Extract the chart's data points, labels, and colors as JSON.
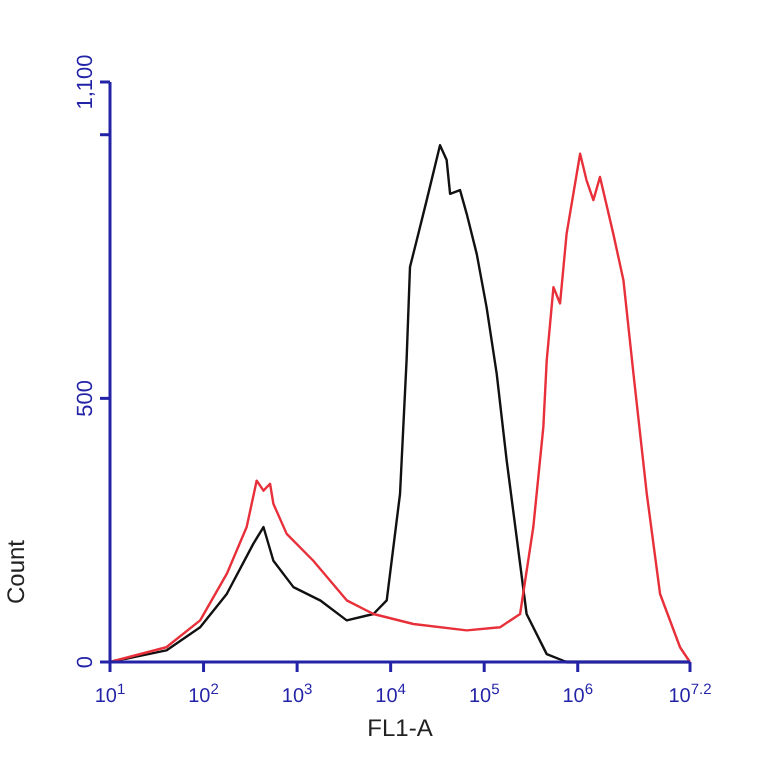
{
  "chart_data": {
    "type": "line",
    "xlabel": "FL1-A",
    "ylabel": "Count",
    "log": "x",
    "xlim": [
      10,
      15848932
    ],
    "xticks": [
      {
        "value": 10,
        "label": "10$^{1}$"
      },
      {
        "value": 100,
        "label": "10$^{2}$"
      },
      {
        "value": 1000,
        "label": "10$^{3}$"
      },
      {
        "value": 10000,
        "label": "10$^{4}$"
      },
      {
        "value": 100000,
        "label": "10$^{5}$"
      },
      {
        "value": 1000000,
        "label": "10$^{6}$"
      },
      {
        "value": 15848932,
        "label": "10$^{7.2}$"
      }
    ],
    "ylim": [
      0,
      1100
    ],
    "yticks": [
      0,
      500,
      {
        "value": 1000,
        "label": null
      },
      {
        "value": 1100,
        "label": "1,100"
      }
    ],
    "grid": false,
    "marker": "none",
    "line_style": "solid",
    "series": [
      {
        "color": "#111111",
        "x": [
          10,
          40,
          92,
          177,
          340,
          437,
          558,
          914,
          1760,
          3390,
          6550,
          9080,
          12600,
          14800,
          16100,
          19000,
          24300,
          33700,
          39700,
          43200,
          55200,
          65000,
          83200,
          106000,
          136000,
          174000,
          284000,
          466000,
          760000,
          15800000
        ],
        "values": [
          0,
          22,
          66,
          129,
          224,
          256,
          192,
          142,
          117,
          79,
          91,
          117,
          319,
          572,
          749,
          800,
          876,
          980,
          952,
          888,
          895,
          850,
          774,
          673,
          547,
          382,
          91,
          15,
          0,
          0
        ]
      },
      {
        "color": "#e8303a",
        "x": [
          10,
          40,
          92,
          177,
          289,
          370,
          437,
          514,
          558,
          774,
          1490,
          3390,
          6550,
          17500,
          65000,
          148000,
          242000,
          335000,
          429000,
          466000,
          550000,
          647000,
          760000,
          1060000,
          1240000,
          1470000,
          1730000,
          2400000,
          3080000,
          3940000,
          5470000,
          7590000,
          12400000,
          15800000
        ],
        "values": [
          0,
          28,
          79,
          167,
          256,
          344,
          325,
          338,
          300,
          243,
          192,
          117,
          91,
          72,
          60,
          66,
          91,
          256,
          446,
          572,
          711,
          680,
          812,
          964,
          914,
          876,
          920,
          812,
          724,
          547,
          319,
          129,
          28,
          0
        ]
      }
    ]
  }
}
